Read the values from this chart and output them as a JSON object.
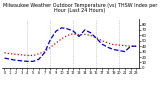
{
  "title": "Milwaukee Weather Outdoor Temperature (vs) THSW Index per Hour (Last 24 Hours)",
  "title_fontsize": 3.5,
  "background_color": "#ffffff",
  "grid_color": "#aaaaaa",
  "x_hours": [
    0,
    1,
    2,
    3,
    4,
    5,
    6,
    7,
    8,
    9,
    10,
    11,
    12,
    13,
    14,
    15,
    16,
    17,
    18,
    19,
    20,
    21,
    22,
    23
  ],
  "temp_values": [
    28,
    26,
    25,
    24,
    23,
    23,
    26,
    30,
    38,
    46,
    54,
    60,
    63,
    61,
    62,
    60,
    56,
    50,
    46,
    43,
    42,
    41,
    40,
    40
  ],
  "thsw_values": [
    18,
    16,
    14,
    13,
    12,
    12,
    16,
    28,
    52,
    68,
    74,
    72,
    68,
    58,
    70,
    65,
    55,
    44,
    38,
    34,
    32,
    30,
    40,
    40
  ],
  "temp_color": "#cc0000",
  "thsw_color": "#0000cc",
  "ylim": [
    0,
    90
  ],
  "ylabel_right_ticks": [
    0,
    10,
    20,
    30,
    40,
    50,
    60,
    70,
    80
  ],
  "ytick_labels": [
    "0",
    "10",
    "20",
    "30",
    "40",
    "50",
    "60",
    "70",
    "80"
  ],
  "x_tick_labels": [
    "0",
    "1",
    "2",
    "3",
    "4",
    "5",
    "6",
    "7",
    "8",
    "9",
    "10",
    "11",
    "12",
    "13",
    "14",
    "15",
    "16",
    "17",
    "18",
    "19",
    "20",
    "21",
    "22",
    "23"
  ],
  "vgrid_positions": [
    4,
    8,
    12,
    16,
    20
  ]
}
